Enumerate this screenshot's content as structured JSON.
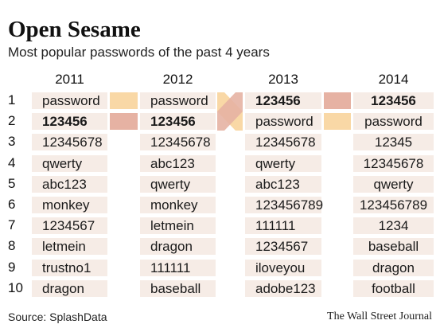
{
  "title": "Open Sesame",
  "subtitle": "Most popular passwords of the past 4 years",
  "colors": {
    "cell_bg": "#f6ece6",
    "password_marker": "#f9d8a6",
    "123456_marker": "#e6b2a3"
  },
  "chart_data": {
    "type": "table",
    "columns": [
      "2011",
      "2012",
      "2013",
      "2014"
    ],
    "ranks": [
      "1",
      "2",
      "3",
      "4",
      "5",
      "6",
      "7",
      "8",
      "9",
      "10"
    ],
    "rows": {
      "2011": [
        "password",
        "123456",
        "12345678",
        "qwerty",
        "abc123",
        "monkey",
        "1234567",
        "letmein",
        "trustno1",
        "dragon"
      ],
      "2012": [
        "password",
        "123456",
        "12345678",
        "abc123",
        "qwerty",
        "monkey",
        "letmein",
        "dragon",
        "111111",
        "baseball"
      ],
      "2013": [
        "123456",
        "password",
        "12345678",
        "qwerty",
        "abc123",
        "123456789",
        "111111",
        "1234567",
        "iloveyou",
        "adobe123"
      ],
      "2014": [
        "123456",
        "password",
        "12345",
        "12345678",
        "qwerty",
        "123456789",
        "1234",
        "baseball",
        "dragon",
        "football"
      ]
    }
  },
  "footer": {
    "source": "Source: SplashData",
    "credit": "The Wall Street Journal"
  }
}
